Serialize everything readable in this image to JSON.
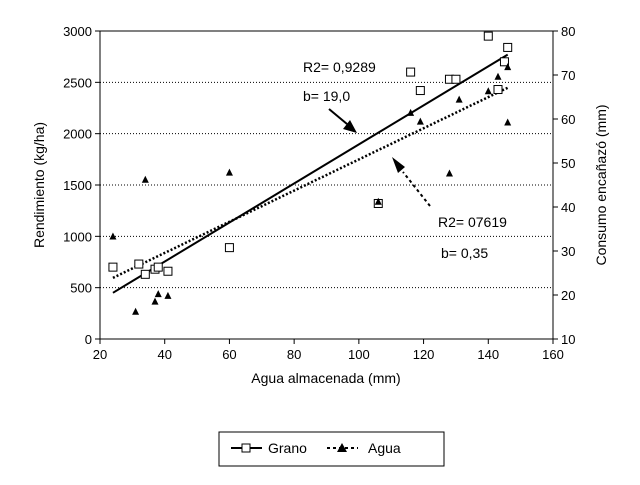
{
  "chart_data": {
    "type": "scatter",
    "xlabel": "Agua almacenada  (mm)",
    "ylabel": "Rendimiento (kg/ha)",
    "y2label": "Consumo encañazó (mm)",
    "xlim": [
      20,
      160
    ],
    "ylim": [
      0,
      3000
    ],
    "y2lim": [
      10,
      80
    ],
    "x_ticks": [
      "20",
      "40",
      "60",
      "80",
      "100",
      "120",
      "140",
      "160"
    ],
    "y_ticks": [
      "0",
      "500",
      "1000",
      "1500",
      "2000",
      "2500",
      "3000"
    ],
    "y2_ticks": [
      "10",
      "20",
      "30",
      "40",
      "50",
      "60",
      "70",
      "80"
    ],
    "gridlines": "horizontal dotted",
    "series": [
      {
        "name": "Grano",
        "axis": "left",
        "marker": "open-square",
        "points": [
          {
            "x": 24,
            "y": 700
          },
          {
            "x": 32,
            "y": 730
          },
          {
            "x": 34,
            "y": 630
          },
          {
            "x": 37,
            "y": 680
          },
          {
            "x": 38,
            "y": 700
          },
          {
            "x": 41,
            "y": 660
          },
          {
            "x": 60,
            "y": 890
          },
          {
            "x": 106,
            "y": 1320
          },
          {
            "x": 116,
            "y": 2600
          },
          {
            "x": 119,
            "y": 2420
          },
          {
            "x": 128,
            "y": 2530
          },
          {
            "x": 130,
            "y": 2530
          },
          {
            "x": 140,
            "y": 2950
          },
          {
            "x": 143,
            "y": 2430
          },
          {
            "x": 145,
            "y": 2700
          },
          {
            "x": 146,
            "y": 2840
          }
        ],
        "trend": {
          "style": "solid",
          "x": [
            24,
            146
          ],
          "y": [
            450,
            2770
          ]
        }
      },
      {
        "name": "Agua",
        "axis": "right",
        "marker": "filled-triangle",
        "points": [
          {
            "x": 24,
            "y": 33.3
          },
          {
            "x": 31,
            "y": 16.2
          },
          {
            "x": 34,
            "y": 46.2
          },
          {
            "x": 37,
            "y": 18.5
          },
          {
            "x": 38,
            "y": 20.2
          },
          {
            "x": 41,
            "y": 19.8
          },
          {
            "x": 60,
            "y": 47.8
          },
          {
            "x": 106,
            "y": 41.2
          },
          {
            "x": 116,
            "y": 61.4
          },
          {
            "x": 119,
            "y": 59.4
          },
          {
            "x": 128,
            "y": 47.6
          },
          {
            "x": 131,
            "y": 64.4
          },
          {
            "x": 140,
            "y": 66.3
          },
          {
            "x": 143,
            "y": 69.6
          },
          {
            "x": 146,
            "y": 59.2
          },
          {
            "x": 146,
            "y": 71.8
          }
        ],
        "trend": {
          "style": "dotted",
          "x": [
            24,
            146
          ],
          "y": [
            23.9,
            67.1
          ]
        }
      }
    ],
    "annotations": [
      {
        "text": "R2= 0,9289",
        "series": "Grano"
      },
      {
        "text": "b= 19,0",
        "series": "Grano"
      },
      {
        "text": "R2= 07619",
        "series": "Agua"
      },
      {
        "text": "b= 0,35",
        "series": "Agua"
      }
    ],
    "legend": {
      "placement": "bottom",
      "entries": [
        "Grano",
        "Agua"
      ]
    }
  }
}
